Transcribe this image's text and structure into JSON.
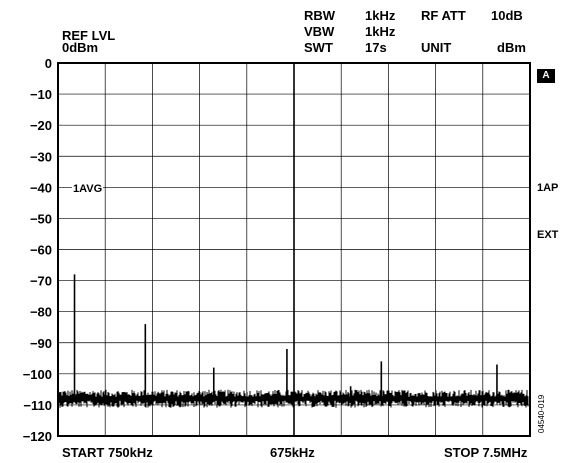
{
  "header": {
    "ref_lvl_label": "REF LVL",
    "ref_lvl_value": "0dBm",
    "rbw_label": "RBW",
    "rbw_value": "1kHz",
    "vbw_label": "VBW",
    "vbw_value": "1kHz",
    "swt_label": "SWT",
    "swt_value": "17s",
    "rf_att_label": "RF ATT",
    "rf_att_value": "10dB",
    "unit_label": "UNIT",
    "unit_value": "dBm"
  },
  "right_markers": {
    "box_label": "A",
    "trace_mode": "1AP",
    "trigger": "EXT",
    "figure_id": "04540-019"
  },
  "trace_label": "1AVG",
  "chart_data": {
    "type": "line",
    "xlabel_left": "START 750kHz",
    "xlabel_center": "675kHz",
    "xlabel_right": "STOP 7.5MHz",
    "yticks": [
      0,
      -10,
      -20,
      -30,
      -40,
      -50,
      -60,
      -70,
      -80,
      -90,
      -100,
      -110,
      -120
    ],
    "ylim": [
      -120,
      0
    ],
    "x_divisions": 10,
    "grid": true,
    "noise_floor": -108,
    "series": [
      {
        "values_x_div": [
          0.35,
          1.85,
          3.3,
          4.85,
          6.2,
          6.85,
          9.3
        ],
        "values": [
          -68,
          -84,
          -98,
          -92,
          -104,
          -96,
          -97
        ]
      }
    ]
  },
  "colors": {
    "trace": "#000000",
    "grid": "#000000",
    "background": "#ffffff"
  }
}
